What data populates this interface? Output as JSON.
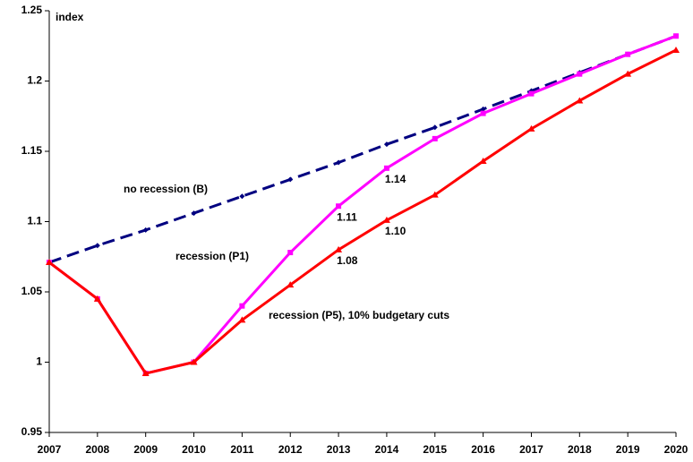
{
  "chart_data": {
    "type": "line",
    "y_label": "index",
    "categories": [
      "2007",
      "2008",
      "2009",
      "2010",
      "2011",
      "2012",
      "2013",
      "2014",
      "2015",
      "2016",
      "2017",
      "2018",
      "2019",
      "2020"
    ],
    "ylim": [
      0.95,
      1.25
    ],
    "yticks": [
      0.95,
      1,
      1.05,
      1.1,
      1.15,
      1.2,
      1.25
    ],
    "series": [
      {
        "name": "no recession (B)",
        "color": "#000080",
        "dashed": true,
        "marker": "diamond",
        "values": [
          1.071,
          1.083,
          1.094,
          1.106,
          1.118,
          1.13,
          1.142,
          1.155,
          1.167,
          1.18,
          1.193,
          1.206,
          1.219,
          1.232
        ]
      },
      {
        "name": "recession (P1)",
        "color": "#ff00ff",
        "dashed": false,
        "marker": "square",
        "values": [
          1.071,
          1.045,
          0.992,
          1.0,
          1.04,
          1.078,
          1.111,
          1.138,
          1.159,
          1.177,
          1.191,
          1.205,
          1.219,
          1.232
        ],
        "value_labels": [
          null,
          null,
          null,
          null,
          null,
          null,
          "1.11",
          "1.14",
          null,
          null,
          null,
          null,
          null,
          null
        ]
      },
      {
        "name": "recession (P5), 10% budgetary cuts",
        "color": "#ff0000",
        "dashed": false,
        "marker": "triangle",
        "values": [
          1.071,
          1.045,
          0.992,
          1.0,
          1.03,
          1.055,
          1.08,
          1.101,
          1.119,
          1.143,
          1.166,
          1.186,
          1.205,
          1.222
        ],
        "value_labels": [
          null,
          null,
          null,
          null,
          null,
          null,
          "1.08",
          "1.10",
          null,
          null,
          null,
          null,
          null,
          null
        ]
      }
    ]
  }
}
